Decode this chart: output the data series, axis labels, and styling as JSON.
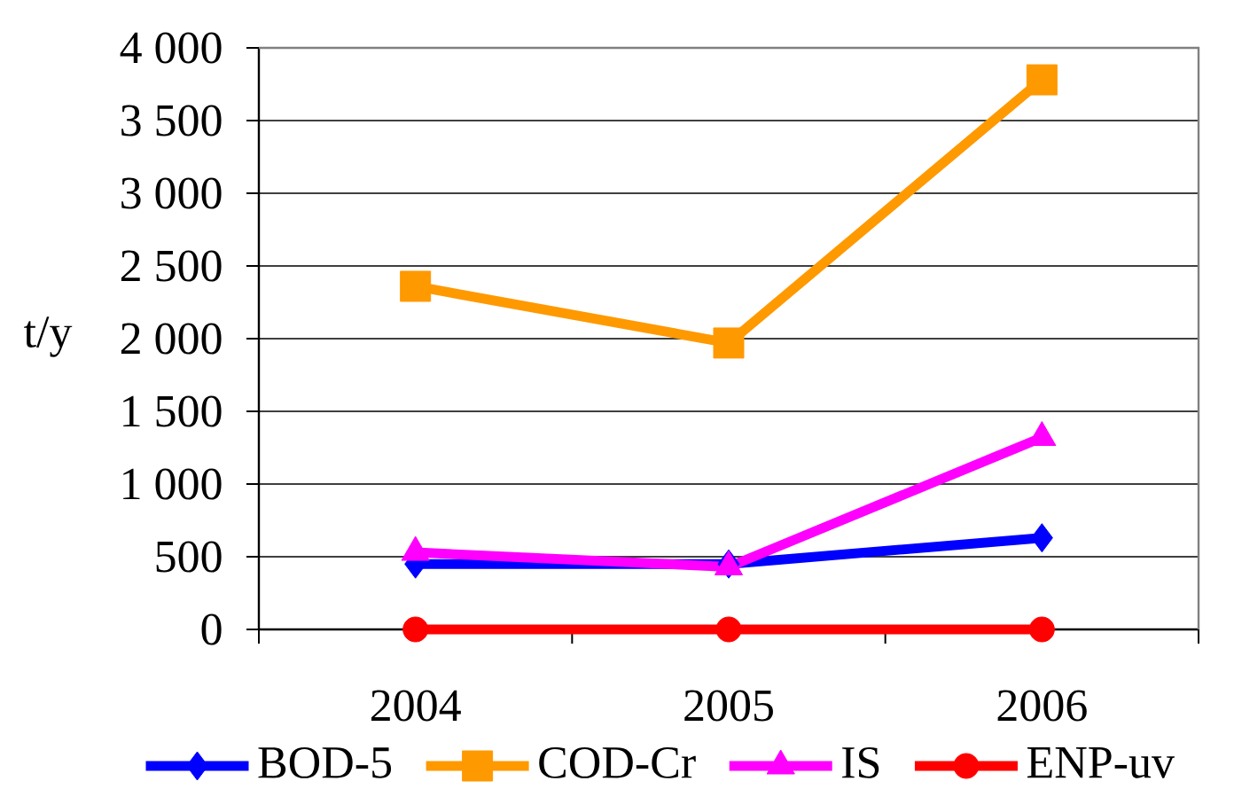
{
  "chart_data": {
    "type": "line",
    "ylabel": "t/y",
    "categories": [
      "2004",
      "2005",
      "2006"
    ],
    "series": [
      {
        "name": "BOD-5",
        "color": "#0000ff",
        "marker": "diamond",
        "values": [
          450,
          450,
          630
        ]
      },
      {
        "name": "COD-Cr",
        "color": "#ff9900",
        "marker": "square",
        "values": [
          2360,
          1970,
          3780
        ]
      },
      {
        "name": "IS",
        "color": "#ff00ff",
        "marker": "triangle",
        "values": [
          530,
          430,
          1320
        ]
      },
      {
        "name": "ENP-uv",
        "color": "#ff0000",
        "marker": "circle",
        "values": [
          0,
          0,
          0
        ]
      }
    ],
    "ylim": [
      0,
      4000
    ],
    "yticks": [
      0,
      500,
      {
        "value": 1000,
        "label": "1 000"
      },
      {
        "value": 1500,
        "label": "1 500"
      },
      {
        "value": 2000,
        "label": "2 000"
      },
      {
        "value": 2500,
        "label": "2 500"
      },
      {
        "value": 3000,
        "label": "3 000"
      },
      {
        "value": 3500,
        "label": "3 500"
      },
      {
        "value": 4000,
        "label": "4 000"
      }
    ],
    "grid": "y",
    "legend": "bottom"
  }
}
